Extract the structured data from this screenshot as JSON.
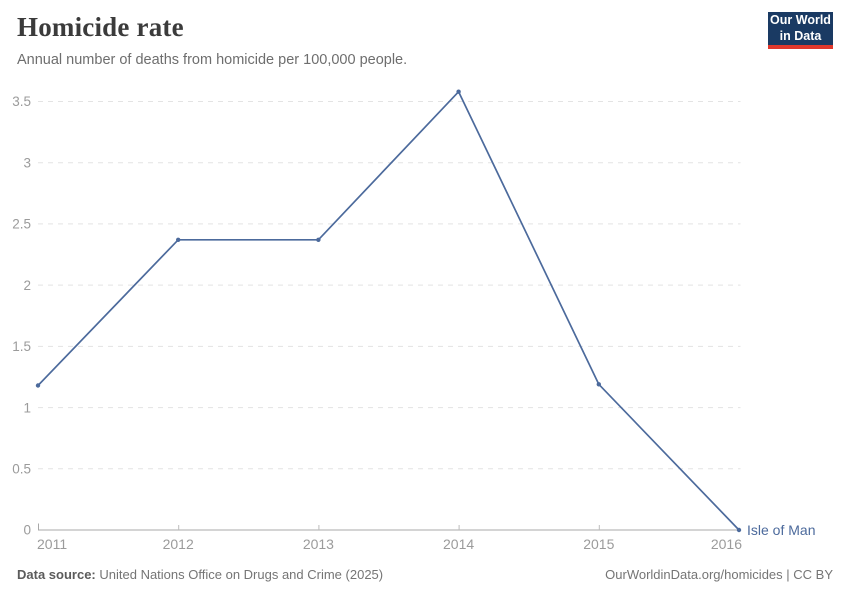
{
  "header": {
    "logo": {
      "line1": "Our World",
      "line2": "in Data"
    },
    "logo_bg_color": "#1a3a63",
    "logo_accent_color": "#e0382c"
  },
  "chart_data": {
    "type": "line",
    "title": "Homicide rate",
    "subtitle": "Annual number of deaths from homicide per 100,000 people.",
    "x": [
      2011,
      2012,
      2013,
      2014,
      2015,
      2016
    ],
    "series": [
      {
        "name": "Isle of Man",
        "values": [
          1.18,
          2.37,
          2.37,
          3.58,
          1.19,
          0
        ],
        "color": "#4C6A9C"
      }
    ],
    "xlabel": "",
    "ylabel": "",
    "ylim": [
      0,
      3.5
    ],
    "yticks": [
      0,
      0.5,
      1,
      1.5,
      2,
      2.5,
      3,
      3.5
    ],
    "xticks": [
      2011,
      2012,
      2013,
      2014,
      2015,
      2016
    ],
    "grid": "horizontal-dashed",
    "legend_position": "end-of-line-label",
    "gridline_color": "#e3e3e3",
    "axis_color": "#a8a8a8",
    "tick_label_color": "#9b9b9b"
  },
  "footer": {
    "source_label": "Data source:",
    "source_text": "United Nations Office on Drugs and Crime (2025)",
    "attribution": "OurWorldinData.org/homicides | CC BY"
  }
}
